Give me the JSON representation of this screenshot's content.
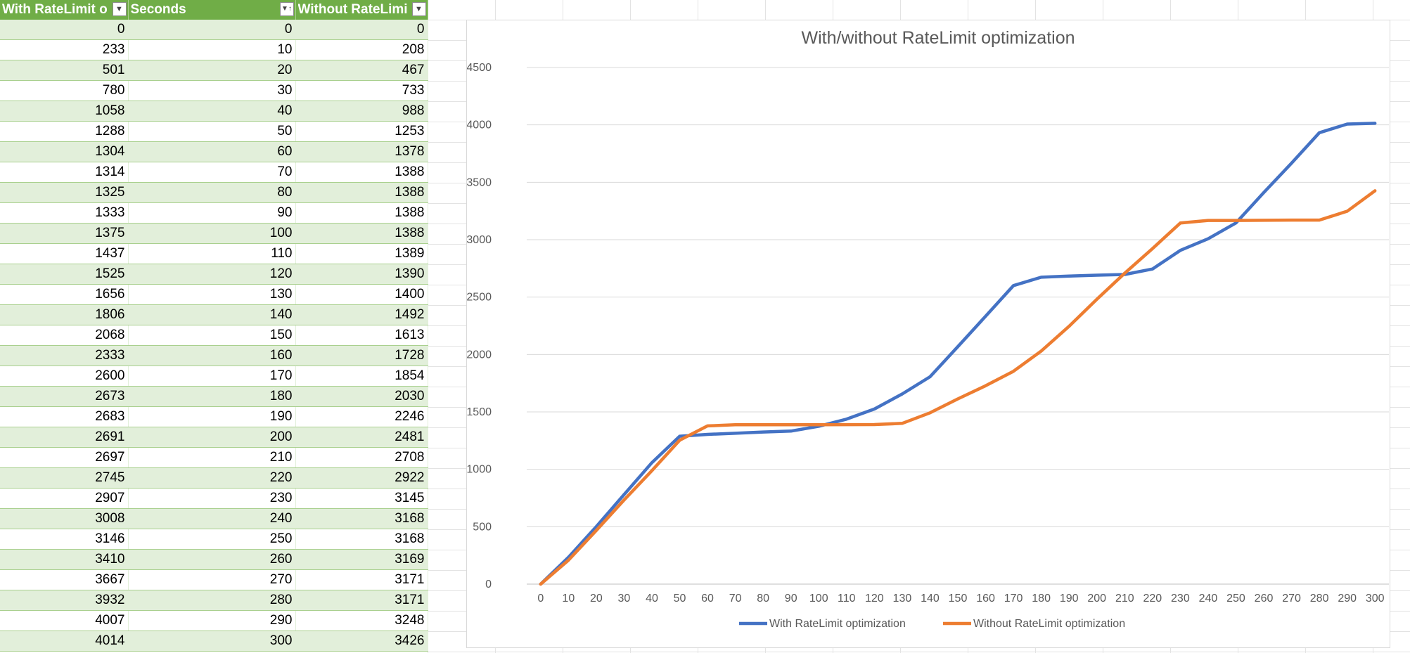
{
  "table": {
    "headers": [
      {
        "label": "With RateLimit o",
        "filter": "filter-dropdown-icon"
      },
      {
        "label": "Seconds",
        "filter": "sort-ascending-filter-icon"
      },
      {
        "label": "Without RateLimi",
        "filter": "filter-dropdown-icon"
      }
    ],
    "rows": [
      [
        "0",
        "0",
        "0"
      ],
      [
        "233",
        "10",
        "208"
      ],
      [
        "501",
        "20",
        "467"
      ],
      [
        "780",
        "30",
        "733"
      ],
      [
        "1058",
        "40",
        "988"
      ],
      [
        "1288",
        "50",
        "1253"
      ],
      [
        "1304",
        "60",
        "1378"
      ],
      [
        "1314",
        "70",
        "1388"
      ],
      [
        "1325",
        "80",
        "1388"
      ],
      [
        "1333",
        "90",
        "1388"
      ],
      [
        "1375",
        "100",
        "1388"
      ],
      [
        "1437",
        "110",
        "1389"
      ],
      [
        "1525",
        "120",
        "1390"
      ],
      [
        "1656",
        "130",
        "1400"
      ],
      [
        "1806",
        "140",
        "1492"
      ],
      [
        "2068",
        "150",
        "1613"
      ],
      [
        "2333",
        "160",
        "1728"
      ],
      [
        "2600",
        "170",
        "1854"
      ],
      [
        "2673",
        "180",
        "2030"
      ],
      [
        "2683",
        "190",
        "2246"
      ],
      [
        "2691",
        "200",
        "2481"
      ],
      [
        "2697",
        "210",
        "2708"
      ],
      [
        "2745",
        "220",
        "2922"
      ],
      [
        "2907",
        "230",
        "3145"
      ],
      [
        "3008",
        "240",
        "3168"
      ],
      [
        "3146",
        "250",
        "3168"
      ],
      [
        "3410",
        "260",
        "3169"
      ],
      [
        "3667",
        "270",
        "3171"
      ],
      [
        "3932",
        "280",
        "3171"
      ],
      [
        "4007",
        "290",
        "3248"
      ],
      [
        "4014",
        "300",
        "3426"
      ]
    ]
  },
  "chart_data": {
    "type": "line",
    "title": "With/without RateLimit optimization",
    "xlabel": "",
    "ylabel": "",
    "x": [
      0,
      10,
      20,
      30,
      40,
      50,
      60,
      70,
      80,
      90,
      100,
      110,
      120,
      130,
      140,
      150,
      160,
      170,
      180,
      190,
      200,
      210,
      220,
      230,
      240,
      250,
      260,
      270,
      280,
      290,
      300
    ],
    "ylim": [
      0,
      4500
    ],
    "yticks": [
      0,
      500,
      1000,
      1500,
      2000,
      2500,
      3000,
      3500,
      4000,
      4500
    ],
    "grid": true,
    "legend": "bottom",
    "series": [
      {
        "name": "With RateLimit optimization",
        "color": "#4472c4",
        "values": [
          0,
          233,
          501,
          780,
          1058,
          1288,
          1304,
          1314,
          1325,
          1333,
          1375,
          1437,
          1525,
          1656,
          1806,
          2068,
          2333,
          2600,
          2673,
          2683,
          2691,
          2697,
          2745,
          2907,
          3008,
          3146,
          3410,
          3667,
          3932,
          4007,
          4014
        ]
      },
      {
        "name": "Without RateLimit optimization",
        "color": "#ed7d31",
        "values": [
          0,
          208,
          467,
          733,
          988,
          1253,
          1378,
          1388,
          1388,
          1388,
          1388,
          1389,
          1390,
          1400,
          1492,
          1613,
          1728,
          1854,
          2030,
          2246,
          2481,
          2708,
          2922,
          3145,
          3168,
          3168,
          3169,
          3171,
          3171,
          3248,
          3426
        ]
      }
    ]
  },
  "colors": {
    "header_bg": "#70ad47",
    "band_row": "#e2efda",
    "gridline": "#d9d9d9",
    "axis_text": "#595959"
  }
}
